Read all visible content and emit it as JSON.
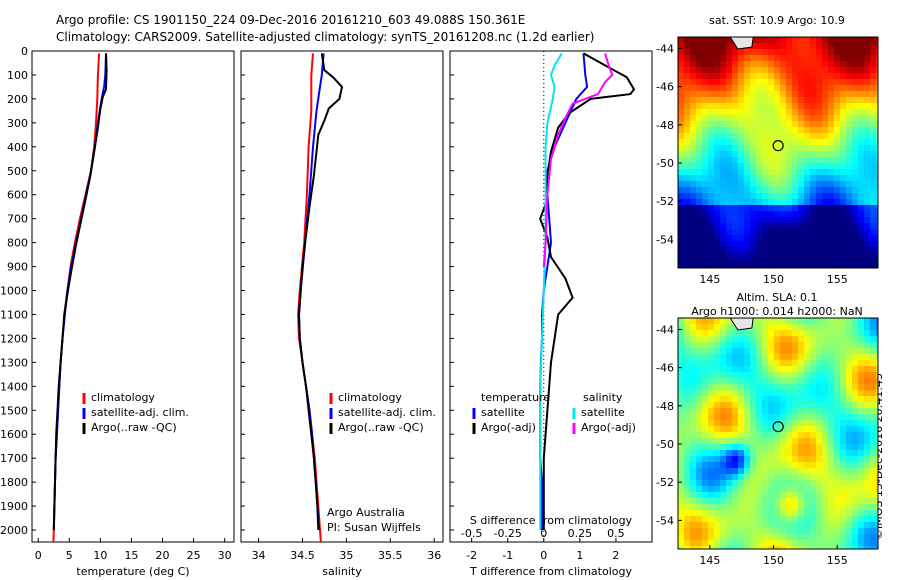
{
  "header": {
    "line1": "Argo profile: CS 1901150_224 09-Dec-2016 20161210_603 49.088S 150.361E",
    "line2": "Climatology: CARS2009. Satellite-adjusted climatology: synTS_20161208.nc (1.2d earlier)"
  },
  "credit": {
    "line1": "Argo Australia",
    "line2": "PI: Susan Wijffels"
  },
  "stamp": "©IMOS 15-Dec-2016 20:41:45",
  "legend_clim": [
    "climatology",
    "satellite-adj. clim.",
    "Argo(..raw -QC)"
  ],
  "legend_diff": {
    "temperature_head": "temperature",
    "salinity_head": "salinity",
    "t_items": [
      "satellite",
      "Argo(-adj)"
    ],
    "s_items": [
      "satellite",
      "Argo(-adj)"
    ]
  },
  "maps": {
    "top_title": "sat. SST: 10.9 Argo: 10.9",
    "bottom_title1": "Altim. SLA: 0.1",
    "bottom_title2": "Argo h1000: 0.014 h2000: NaN",
    "lat_ticks": [
      "-44",
      "-46",
      "-48",
      "-50",
      "-52",
      "-54"
    ],
    "lon_ticks": [
      "145",
      "150",
      "155"
    ],
    "argo_position": {
      "lon": 150.361,
      "lat": -49.088
    }
  },
  "colors": {
    "climatology": "#ff0000",
    "satellite": "#0000ff",
    "argo": "#000000",
    "salinity_sat": "#00e5ee",
    "salinity_argo": "#ff00ff"
  },
  "chart_data": [
    {
      "type": "line",
      "xlabel": "temperature (deg C)",
      "ylabel": "",
      "xlim": [
        -1,
        31.5
      ],
      "ylim": [
        2050,
        0
      ],
      "xticks": [
        "0",
        "5",
        "10",
        "15",
        "20",
        "25",
        "30"
      ],
      "yticks": [
        "0",
        "100",
        "200",
        "300",
        "400",
        "500",
        "600",
        "700",
        "800",
        "900",
        "1000",
        "1100",
        "1200",
        "1300",
        "1400",
        "1500",
        "1600",
        "1700",
        "1800",
        "1900",
        "2000"
      ],
      "series": [
        {
          "name": "climatology",
          "color": "#ff0000",
          "points": [
            [
              9.8,
              10
            ],
            [
              9.6,
              100
            ],
            [
              9.5,
              200
            ],
            [
              9.3,
              300
            ],
            [
              9.0,
              400
            ],
            [
              8.5,
              500
            ],
            [
              7.6,
              600
            ],
            [
              6.7,
              700
            ],
            [
              5.9,
              800
            ],
            [
              5.2,
              900
            ],
            [
              4.7,
              1000
            ],
            [
              4.2,
              1100
            ],
            [
              3.9,
              1200
            ],
            [
              3.6,
              1300
            ],
            [
              3.4,
              1400
            ],
            [
              3.2,
              1500
            ],
            [
              3.0,
              1600
            ],
            [
              2.8,
              1700
            ],
            [
              2.7,
              1800
            ],
            [
              2.6,
              1900
            ],
            [
              2.5,
              2000
            ],
            [
              2.45,
              2050
            ]
          ]
        },
        {
          "name": "satellite-adj. clim.",
          "color": "#0000ff",
          "points": [
            [
              10.9,
              10
            ],
            [
              10.8,
              100
            ],
            [
              10.6,
              150
            ],
            [
              10.2,
              200
            ],
            [
              9.6,
              300
            ],
            [
              9.1,
              400
            ],
            [
              8.5,
              500
            ],
            [
              7.7,
              600
            ],
            [
              6.9,
              700
            ],
            [
              6.1,
              800
            ],
            [
              5.3,
              900
            ],
            [
              4.7,
              1000
            ],
            [
              4.3,
              1100
            ],
            [
              3.9,
              1200
            ],
            [
              3.6,
              1300
            ],
            [
              3.4,
              1400
            ],
            [
              3.2,
              1500
            ],
            [
              3.0,
              1600
            ],
            [
              2.8,
              1700
            ],
            [
              2.7,
              1800
            ],
            [
              2.6,
              1900
            ],
            [
              2.5,
              2000
            ]
          ]
        },
        {
          "name": "Argo(..raw -QC)",
          "color": "#000000",
          "points": [
            [
              10.9,
              10
            ],
            [
              11.0,
              80
            ],
            [
              10.9,
              160
            ],
            [
              10.4,
              190
            ],
            [
              10.0,
              240
            ],
            [
              9.6,
              320
            ],
            [
              9.0,
              420
            ],
            [
              8.4,
              520
            ],
            [
              7.6,
              620
            ],
            [
              6.8,
              720
            ],
            [
              6.0,
              820
            ],
            [
              5.3,
              920
            ],
            [
              4.8,
              1000
            ],
            [
              4.2,
              1100
            ],
            [
              3.9,
              1200
            ],
            [
              3.6,
              1300
            ],
            [
              3.3,
              1400
            ],
            [
              3.1,
              1500
            ],
            [
              2.9,
              1600
            ],
            [
              2.8,
              1700
            ],
            [
              2.7,
              1800
            ],
            [
              2.6,
              1900
            ],
            [
              2.5,
              2000
            ]
          ]
        }
      ]
    },
    {
      "type": "line",
      "xlabel": "salinity",
      "ylabel": "",
      "xlim": [
        33.8,
        36.1
      ],
      "ylim": [
        2050,
        0
      ],
      "xticks": [
        "34",
        "34.5",
        "35",
        "35.5",
        "36"
      ],
      "series": [
        {
          "name": "climatology",
          "color": "#ff0000",
          "points": [
            [
              34.62,
              10
            ],
            [
              34.6,
              100
            ],
            [
              34.6,
              250
            ],
            [
              34.57,
              400
            ],
            [
              34.55,
              600
            ],
            [
              34.52,
              800
            ],
            [
              34.47,
              1000
            ],
            [
              34.45,
              1100
            ],
            [
              34.46,
              1200
            ],
            [
              34.5,
              1300
            ],
            [
              34.54,
              1400
            ],
            [
              34.58,
              1500
            ],
            [
              34.61,
              1600
            ],
            [
              34.64,
              1700
            ],
            [
              34.66,
              1800
            ],
            [
              34.68,
              1900
            ],
            [
              34.7,
              2000
            ],
            [
              34.71,
              2050
            ]
          ]
        },
        {
          "name": "satellite-adj. clim.",
          "color": "#0000ff",
          "points": [
            [
              34.74,
              10
            ],
            [
              34.72,
              100
            ],
            [
              34.7,
              150
            ],
            [
              34.66,
              250
            ],
            [
              34.62,
              400
            ],
            [
              34.58,
              600
            ],
            [
              34.53,
              800
            ],
            [
              34.48,
              1000
            ],
            [
              34.46,
              1100
            ],
            [
              34.47,
              1200
            ],
            [
              34.5,
              1300
            ],
            [
              34.54,
              1400
            ],
            [
              34.58,
              1500
            ],
            [
              34.61,
              1600
            ],
            [
              34.63,
              1700
            ],
            [
              34.65,
              1800
            ],
            [
              34.67,
              1900
            ],
            [
              34.69,
              2000
            ]
          ]
        },
        {
          "name": "Argo(..raw -QC)",
          "color": "#000000",
          "points": [
            [
              34.72,
              10
            ],
            [
              34.75,
              80
            ],
            [
              34.85,
              110
            ],
            [
              34.95,
              150
            ],
            [
              34.92,
              200
            ],
            [
              34.8,
              240
            ],
            [
              34.75,
              290
            ],
            [
              34.68,
              350
            ],
            [
              34.66,
              420
            ],
            [
              34.63,
              520
            ],
            [
              34.58,
              650
            ],
            [
              34.53,
              800
            ],
            [
              34.5,
              900
            ],
            [
              34.48,
              1000
            ],
            [
              34.46,
              1100
            ],
            [
              34.47,
              1200
            ],
            [
              34.5,
              1300
            ],
            [
              34.54,
              1400
            ],
            [
              34.57,
              1500
            ],
            [
              34.6,
              1600
            ],
            [
              34.63,
              1700
            ],
            [
              34.65,
              1800
            ],
            [
              34.67,
              1900
            ],
            [
              34.68,
              2000
            ]
          ]
        }
      ]
    },
    {
      "type": "line",
      "xlabel": "T difference from climatology",
      "x2label": "S difference from climatology",
      "xlim": [
        -2.6,
        3.0
      ],
      "ylim": [
        2050,
        0
      ],
      "xticks": [
        "-2",
        "-1",
        "0",
        "1",
        "2"
      ],
      "x2ticks": [
        "-0.5",
        "-0.25",
        "0",
        "0.25",
        "0.5"
      ],
      "s_scale": 4,
      "series": [
        {
          "name": "temperature satellite",
          "color": "#0000ff",
          "points": [
            [
              1.1,
              10
            ],
            [
              1.15,
              100
            ],
            [
              1.2,
              150
            ],
            [
              0.9,
              200
            ],
            [
              0.6,
              300
            ],
            [
              0.3,
              400
            ],
            [
              0.1,
              500
            ],
            [
              0.1,
              600
            ],
            [
              0.15,
              700
            ],
            [
              0.2,
              800
            ],
            [
              0.1,
              900
            ],
            [
              0.0,
              1000
            ],
            [
              -0.05,
              1100
            ],
            [
              -0.05,
              1200
            ],
            [
              -0.08,
              1300
            ],
            [
              -0.1,
              1400
            ],
            [
              -0.1,
              1500
            ],
            [
              -0.1,
              1600
            ],
            [
              -0.1,
              1700
            ],
            [
              -0.05,
              1800
            ],
            [
              -0.05,
              1900
            ],
            [
              -0.05,
              2000
            ]
          ]
        },
        {
          "name": "temperature Argo(-adj)",
          "color": "#000000",
          "points": [
            [
              1.1,
              10
            ],
            [
              1.7,
              60
            ],
            [
              2.3,
              110
            ],
            [
              2.5,
              160
            ],
            [
              2.4,
              180
            ],
            [
              1.3,
              200
            ],
            [
              0.7,
              260
            ],
            [
              0.4,
              320
            ],
            [
              0.2,
              420
            ],
            [
              0.1,
              520
            ],
            [
              0.1,
              620
            ],
            [
              -0.1,
              700
            ],
            [
              0.1,
              780
            ],
            [
              0.2,
              860
            ],
            [
              0.6,
              950
            ],
            [
              0.8,
              1030
            ],
            [
              0.4,
              1100
            ],
            [
              0.3,
              1200
            ],
            [
              0.2,
              1300
            ],
            [
              0.15,
              1400
            ],
            [
              0.1,
              1500
            ],
            [
              0.05,
              1600
            ],
            [
              0.0,
              1700
            ],
            [
              0.0,
              1800
            ],
            [
              0.0,
              1900
            ],
            [
              0.0,
              2000
            ]
          ]
        },
        {
          "name": "salinity satellite",
          "color": "#00e5ee",
          "points": [
            [
              0.5,
              10
            ],
            [
              0.3,
              60
            ],
            [
              0.2,
              100
            ],
            [
              0.3,
              150
            ],
            [
              0.25,
              200
            ],
            [
              0.1,
              300
            ],
            [
              0.05,
              400
            ],
            [
              0.05,
              600
            ],
            [
              0.05,
              800
            ],
            [
              0.0,
              1000
            ],
            [
              -0.05,
              1200
            ],
            [
              -0.1,
              1400
            ],
            [
              -0.1,
              1600
            ],
            [
              -0.1,
              1800
            ],
            [
              -0.1,
              2000
            ]
          ]
        },
        {
          "name": "salinity Argo(-adj)",
          "color": "#ff00ff",
          "points": [
            [
              1.7,
              10
            ],
            [
              1.8,
              60
            ],
            [
              1.9,
              100
            ],
            [
              1.7,
              130
            ],
            [
              1.5,
              180
            ],
            [
              0.8,
              220
            ],
            [
              0.6,
              280
            ],
            [
              0.4,
              350
            ],
            [
              0.2,
              450
            ],
            [
              0.1,
              600
            ],
            [
              0.05,
              800
            ],
            [
              0.0,
              900
            ]
          ]
        }
      ]
    }
  ]
}
